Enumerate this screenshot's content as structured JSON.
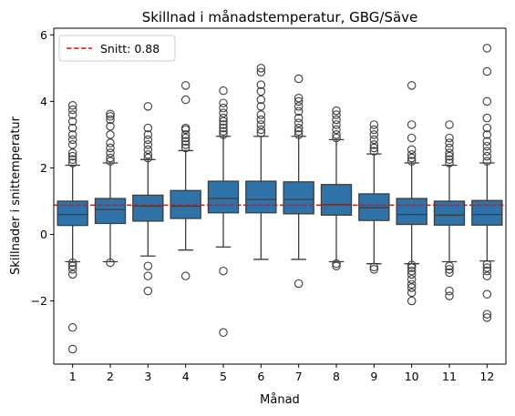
{
  "chart_data": {
    "type": "box",
    "title": "Skillnad i månadstemperatur, GBG/Säve",
    "xlabel": "Månad",
    "ylabel": "Skillnader i snittemperatur",
    "ylim": [
      -3.9,
      6.2
    ],
    "yticks": [
      -2,
      0,
      2,
      4,
      6
    ],
    "grid": false,
    "legend": {
      "placement": "top-left",
      "entries": [
        {
          "label": "Snitt: 0.88",
          "style": "dashed",
          "color": "#ff0000"
        }
      ]
    },
    "reference_line": {
      "value": 0.88,
      "color": "#ff0000",
      "style": "dashed"
    },
    "box_color": "#2f73a8",
    "outlier_marker": "open circle",
    "categories": [
      "1",
      "2",
      "3",
      "4",
      "5",
      "6",
      "7",
      "8",
      "9",
      "10",
      "11",
      "12"
    ],
    "boxes": [
      {
        "q1": 0.27,
        "median": 0.6,
        "q3": 1.0,
        "whisker_low": -0.82,
        "whisker_high": 2.08,
        "outliers": [
          2.15,
          2.25,
          2.35,
          2.45,
          2.7,
          2.85,
          3.0,
          3.2,
          3.4,
          3.6,
          3.75,
          3.88,
          -0.85,
          -0.95,
          -1.05,
          -1.2,
          -2.8,
          -3.45
        ]
      },
      {
        "q1": 0.33,
        "median": 0.75,
        "q3": 1.08,
        "whisker_low": -0.82,
        "whisker_high": 2.15,
        "outliers": [
          2.2,
          2.3,
          2.45,
          2.6,
          2.75,
          3.0,
          3.25,
          3.45,
          3.55,
          3.62,
          -0.85
        ]
      },
      {
        "q1": 0.4,
        "median": 0.85,
        "q3": 1.18,
        "whisker_low": -0.65,
        "whisker_high": 2.25,
        "outliers": [
          2.3,
          2.4,
          2.55,
          2.7,
          2.85,
          3.0,
          3.2,
          3.85,
          -0.95,
          -1.25,
          -1.7
        ]
      },
      {
        "q1": 0.48,
        "median": 0.85,
        "q3": 1.32,
        "whisker_low": -0.47,
        "whisker_high": 2.52,
        "outliers": [
          2.6,
          2.7,
          2.8,
          2.9,
          3.0,
          3.15,
          3.2,
          4.05,
          4.48,
          -1.25
        ]
      },
      {
        "q1": 0.65,
        "median": 1.08,
        "q3": 1.6,
        "whisker_low": -0.38,
        "whisker_high": 2.95,
        "outliers": [
          3.0,
          3.1,
          3.2,
          3.3,
          3.4,
          3.5,
          3.65,
          3.8,
          3.95,
          4.32,
          -1.1,
          -2.95
        ]
      },
      {
        "q1": 0.65,
        "median": 1.05,
        "q3": 1.6,
        "whisker_low": -0.75,
        "whisker_high": 2.95,
        "outliers": [
          3.05,
          3.15,
          3.3,
          3.45,
          3.6,
          3.85,
          4.05,
          4.3,
          4.5,
          4.88,
          5.0
        ]
      },
      {
        "q1": 0.62,
        "median": 1.05,
        "q3": 1.58,
        "whisker_low": -0.75,
        "whisker_high": 2.95,
        "outliers": [
          3.0,
          3.1,
          3.2,
          3.35,
          3.5,
          3.7,
          3.85,
          4.0,
          4.1,
          4.68,
          -1.48
        ]
      },
      {
        "q1": 0.58,
        "median": 0.9,
        "q3": 1.5,
        "whisker_low": -0.82,
        "whisker_high": 2.85,
        "outliers": [
          2.9,
          3.0,
          3.15,
          3.3,
          3.45,
          3.6,
          3.72,
          -0.88,
          -0.95
        ]
      },
      {
        "q1": 0.42,
        "median": 0.8,
        "q3": 1.22,
        "whisker_low": -0.88,
        "whisker_high": 2.42,
        "outliers": [
          2.5,
          2.6,
          2.7,
          2.85,
          3.0,
          3.15,
          3.3,
          -0.98,
          -1.05
        ]
      },
      {
        "q1": 0.3,
        "median": 0.6,
        "q3": 1.08,
        "whisker_low": -0.88,
        "whisker_high": 2.15,
        "outliers": [
          2.2,
          2.3,
          2.4,
          2.55,
          2.9,
          3.3,
          4.48,
          -0.92,
          -1.0,
          -1.1,
          -1.2,
          -1.35,
          -1.5,
          -1.6,
          -1.75,
          -2.0
        ]
      },
      {
        "q1": 0.28,
        "median": 0.58,
        "q3": 1.0,
        "whisker_low": -0.82,
        "whisker_high": 2.08,
        "outliers": [
          2.15,
          2.25,
          2.35,
          2.45,
          2.6,
          2.75,
          2.9,
          3.3,
          -0.95,
          -1.05,
          -1.15,
          -1.7,
          -1.85
        ]
      },
      {
        "q1": 0.28,
        "median": 0.6,
        "q3": 1.02,
        "whisker_low": -0.8,
        "whisker_high": 2.15,
        "outliers": [
          2.2,
          2.35,
          2.5,
          2.65,
          2.8,
          3.0,
          3.2,
          3.5,
          4.0,
          4.9,
          5.6,
          -0.9,
          -1.0,
          -1.1,
          -1.25,
          -1.8,
          -2.4,
          -2.5
        ]
      }
    ]
  }
}
